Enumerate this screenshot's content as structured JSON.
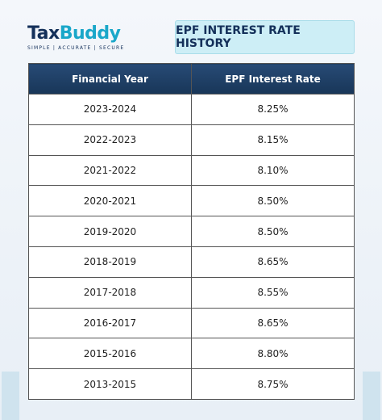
{
  "logo": {
    "parts": [
      "Tax",
      "Buddy"
    ],
    "tagline": "SIMPLE | ACCURATE | SECURE"
  },
  "title": "EPF INTEREST RATE HISTORY",
  "table": {
    "header": [
      "Financial Year",
      "EPF Interest Rate"
    ],
    "rows": [
      [
        "2023-2024",
        "8.25%"
      ],
      [
        "2022-2023",
        "8.15%"
      ],
      [
        "2021-2022",
        "8.10%"
      ],
      [
        "2020-2021",
        "8.50%"
      ],
      [
        "2019-2020",
        "8.50%"
      ],
      [
        "2018-2019",
        "8.65%"
      ],
      [
        "2017-2018",
        "8.55%"
      ],
      [
        "2016-2017",
        "8.65%"
      ],
      [
        "2015-2016",
        "8.80%"
      ],
      [
        "2013-2015",
        "8.75%"
      ]
    ]
  }
}
